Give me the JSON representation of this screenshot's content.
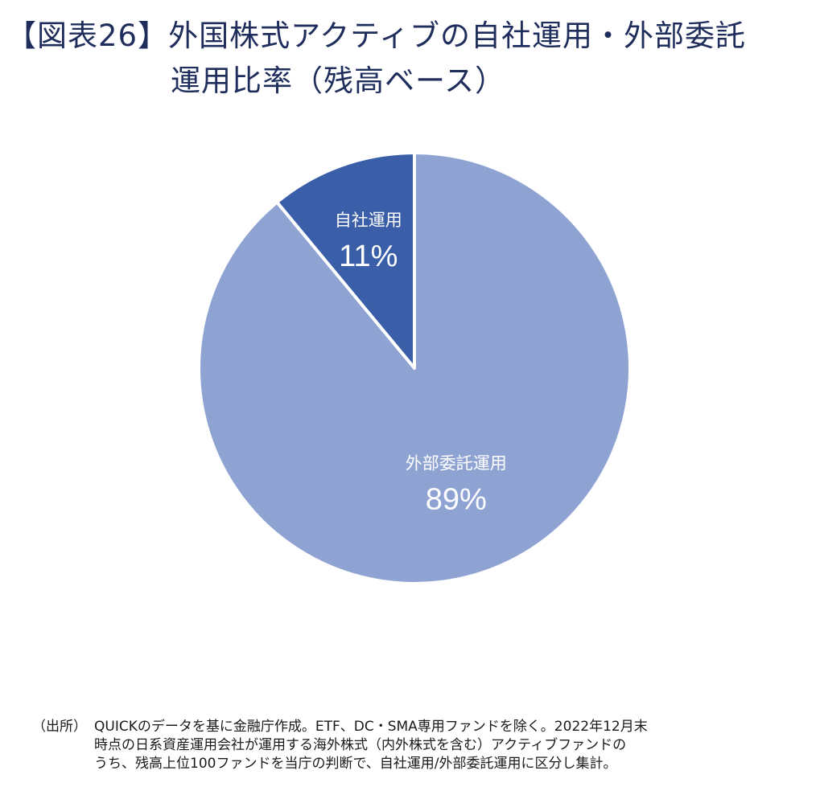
{
  "title": {
    "line1": "【図表26】外国株式アクティブの自社運用・外部委託",
    "line2": "運用比率（残高ベース）"
  },
  "chart_data": {
    "type": "pie",
    "slices": [
      {
        "label": "自社運用",
        "value": 11,
        "value_label": "11%",
        "color": "#3a5fa8"
      },
      {
        "label": "外部委託運用",
        "value": 89,
        "value_label": "89%",
        "color": "#8fa3d3"
      }
    ],
    "start_angle": "12 o'clock",
    "direction": "counter-clockwise for first slice"
  },
  "source": {
    "label": "（出所）",
    "lines": [
      "QUICKのデータを基に金融庁作成。ETF、DC・SMA専用ファンドを除く。2022年12月末",
      "時点の日系資産運用会社が運用する海外株式（内外株式を含む）アクティブファンドの",
      "うち、残高上位100ファンドを当庁の判断で、自社運用/外部委託運用に区分し集計。"
    ]
  }
}
